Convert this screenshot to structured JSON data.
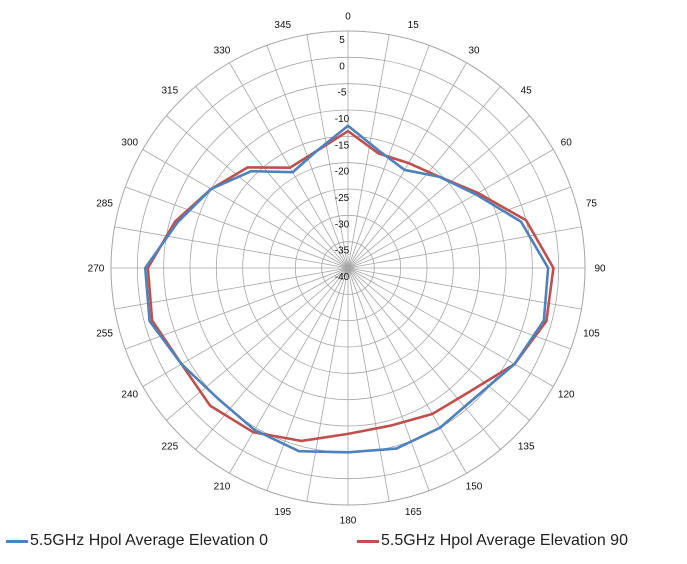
{
  "chart_data": {
    "type": "line",
    "subtype": "polar",
    "title": "",
    "angle_unit": "degrees",
    "angle_ticks": [
      "0",
      "15",
      "30",
      "45",
      "60",
      "75",
      "90",
      "105",
      "120",
      "135",
      "150",
      "165",
      "180",
      "195",
      "210",
      "225",
      "240",
      "255",
      "270",
      "285",
      "300",
      "315",
      "330",
      "345"
    ],
    "radial_ticks": [
      "5",
      "0",
      "-5",
      "-10",
      "-15",
      "-20",
      "-25",
      "-30",
      "-35",
      "-40"
    ],
    "rlim": [
      -40,
      5
    ],
    "grid": true,
    "legend_position": "bottom",
    "series": [
      {
        "name": "5.5GHz Hpol Average Elevation 0",
        "color": "#4F81BD",
        "angles": [
          0,
          15,
          30,
          45,
          60,
          75,
          90,
          105,
          120,
          135,
          150,
          165,
          180,
          195,
          210,
          225,
          240,
          255,
          270,
          285,
          300,
          315,
          330,
          345,
          360
        ],
        "values": [
          -13,
          -17,
          -18.5,
          -15.5,
          -12,
          -6,
          -2,
          -1.5,
          -3.5,
          -5.5,
          -5,
          -4.5,
          -5,
          -4,
          -4.5,
          -5,
          -3.5,
          -1,
          -1.5,
          -6.5,
          -10,
          -14,
          -19,
          -17,
          -13
        ]
      },
      {
        "name": "5.5GHz Hpol Average Elevation 90",
        "color": "#C0504D",
        "angles": [
          0,
          15,
          30,
          45,
          60,
          75,
          90,
          105,
          120,
          135,
          150,
          165,
          180,
          195,
          210,
          225,
          240,
          255,
          270,
          285,
          300,
          315,
          330,
          345,
          360
        ],
        "values": [
          -14,
          -17.5,
          -17,
          -15.5,
          -11.5,
          -5,
          -1,
          -1,
          -3.5,
          -7,
          -8,
          -9,
          -8.5,
          -6,
          -4,
          -3,
          -3.5,
          -1.5,
          -2,
          -6,
          -10,
          -13,
          -18,
          -17,
          -14
        ]
      }
    ]
  }
}
